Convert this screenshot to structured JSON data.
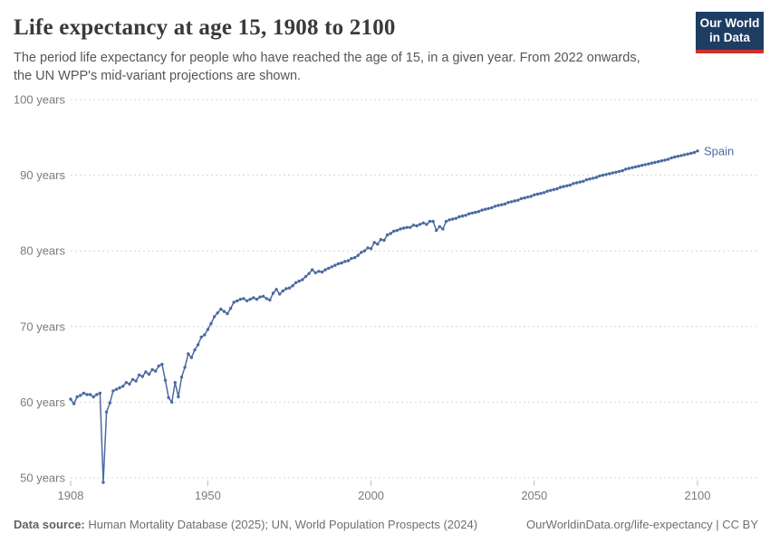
{
  "header": {
    "title": "Life expectancy at age 15, 1908 to 2100",
    "subtitle": "The period life expectancy for people who have reached the age of 15, in a given year. From 2022 onwards, the UN WPP's mid-variant projections are shown.",
    "logo": {
      "line1": "Our World",
      "line2": "in Data"
    }
  },
  "chart_data": {
    "type": "line",
    "title": "Life expectancy at age 15, 1908 to 2100",
    "xlabel": "",
    "ylabel": "years",
    "xlim": [
      1908,
      2100
    ],
    "ylim": [
      50,
      100
    ],
    "grid": "horizontal-dashed",
    "legend_position": "end-of-line-label",
    "x_ticks": [
      1908,
      1950,
      2000,
      2050,
      2100
    ],
    "y_ticks": [
      {
        "value": 50,
        "label": "50 years"
      },
      {
        "value": 60,
        "label": "60 years"
      },
      {
        "value": 70,
        "label": "70 years"
      },
      {
        "value": 80,
        "label": "80 years"
      },
      {
        "value": 90,
        "label": "90 years"
      },
      {
        "value": 100,
        "label": "100 years"
      }
    ],
    "projection_from": 2022,
    "series": [
      {
        "name": "Spain",
        "color": "#4c6aa0",
        "x_start": 1908,
        "x_step": 1,
        "values": [
          60.4,
          59.8,
          60.7,
          60.9,
          61.2,
          61.0,
          61.0,
          60.7,
          61.0,
          61.2,
          49.4,
          58.7,
          59.9,
          61.5,
          61.7,
          61.9,
          62.1,
          62.6,
          62.4,
          63.0,
          62.8,
          63.6,
          63.4,
          64.0,
          63.7,
          64.3,
          64.1,
          64.8,
          65.0,
          62.9,
          60.6,
          60.0,
          62.6,
          60.7,
          63.3,
          64.6,
          66.4,
          65.9,
          66.9,
          67.6,
          68.6,
          68.9,
          69.6,
          70.4,
          71.3,
          71.8,
          72.3,
          72.0,
          71.7,
          72.4,
          73.2,
          73.4,
          73.6,
          73.7,
          73.4,
          73.6,
          73.8,
          73.6,
          73.9,
          74.0,
          73.7,
          73.5,
          74.4,
          74.9,
          74.3,
          74.7,
          75.0,
          75.1,
          75.4,
          75.8,
          76.0,
          76.2,
          76.6,
          77.0,
          77.5,
          77.1,
          77.3,
          77.2,
          77.5,
          77.7,
          77.9,
          78.1,
          78.3,
          78.4,
          78.6,
          78.7,
          79.0,
          79.1,
          79.4,
          79.8,
          80.0,
          80.4,
          80.3,
          81.1,
          80.9,
          81.5,
          81.4,
          82.1,
          82.3,
          82.6,
          82.7,
          82.9,
          83.0,
          83.1,
          83.1,
          83.4,
          83.3,
          83.5,
          83.7,
          83.5,
          83.9,
          83.9,
          82.7,
          83.2,
          82.9,
          83.9,
          84.1,
          84.2,
          84.3,
          84.5,
          84.6,
          84.7,
          84.9,
          85.0,
          85.1,
          85.2,
          85.4,
          85.5,
          85.6,
          85.7,
          85.9,
          86.0,
          86.1,
          86.2,
          86.4,
          86.5,
          86.6,
          86.7,
          86.9,
          87.0,
          87.1,
          87.2,
          87.4,
          87.5,
          87.6,
          87.7,
          87.9,
          88.0,
          88.1,
          88.2,
          88.4,
          88.5,
          88.6,
          88.7,
          88.9,
          89.0,
          89.1,
          89.2,
          89.4,
          89.5,
          89.6,
          89.7,
          89.9,
          90.0,
          90.1,
          90.2,
          90.3,
          90.4,
          90.5,
          90.6,
          90.8,
          90.9,
          91.0,
          91.1,
          91.2,
          91.3,
          91.4,
          91.5,
          91.6,
          91.7,
          91.8,
          91.9,
          92.0,
          92.1,
          92.3,
          92.4,
          92.5,
          92.6,
          92.7,
          92.8,
          92.9,
          93.0,
          93.2
        ]
      }
    ]
  },
  "footer": {
    "datasource_label": "Data source:",
    "datasource_text": " Human Mortality Database (2025); UN, World Population Prospects (2024)",
    "right_text": "OurWorldinData.org/life-expectancy | CC BY"
  },
  "colors": {
    "line": "#4c6aa0",
    "grid": "#d4d4d4",
    "tick_text": "#7b7b7b",
    "title_text": "#3a3a3a",
    "subtitle_text": "#565656",
    "footer_text": "#6f6f6f",
    "logo_bg": "#1d3d63",
    "logo_accent": "#d2302c"
  }
}
